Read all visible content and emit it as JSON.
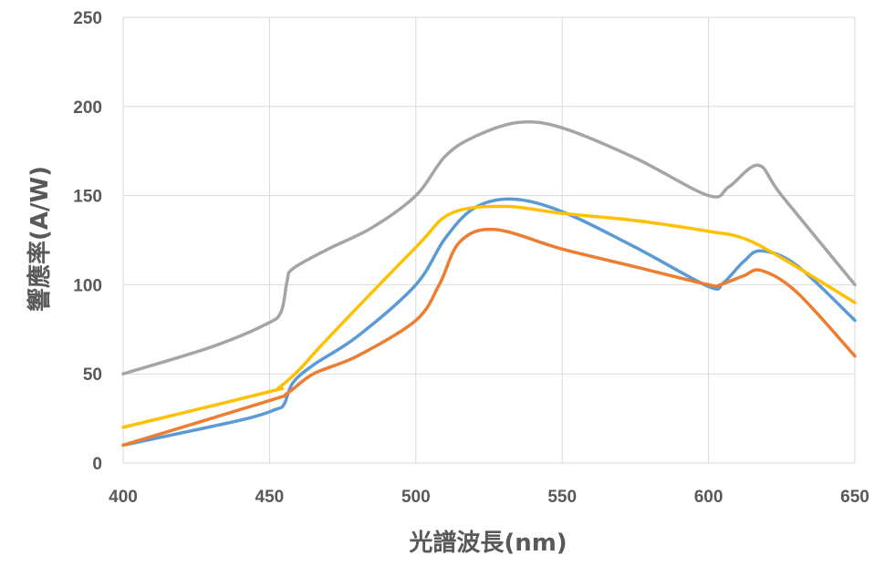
{
  "chart_data": {
    "type": "line",
    "xlabel": "光譜波長(nm)",
    "ylabel": "響應率(A/W)",
    "xlim": [
      400,
      650
    ],
    "ylim": [
      0,
      250
    ],
    "x_ticks": [
      400,
      450,
      500,
      550,
      600,
      650
    ],
    "y_ticks": [
      0,
      50,
      100,
      150,
      200,
      250
    ],
    "grid": true,
    "series": [
      {
        "color": "#5b9bd5",
        "points": [
          [
            400,
            10
          ],
          [
            440,
            24
          ],
          [
            452,
            30
          ],
          [
            455,
            33
          ],
          [
            458,
            45
          ],
          [
            465,
            55
          ],
          [
            480,
            71
          ],
          [
            500,
            100
          ],
          [
            510,
            126
          ],
          [
            520,
            143
          ],
          [
            533,
            148
          ],
          [
            550,
            141
          ],
          [
            575,
            121
          ],
          [
            600,
            99
          ],
          [
            605,
            101
          ],
          [
            612,
            113
          ],
          [
            618,
            119
          ],
          [
            630,
            111
          ],
          [
            650,
            80
          ]
        ]
      },
      {
        "color": "#ed7d31",
        "points": [
          [
            400,
            10
          ],
          [
            450,
            35
          ],
          [
            456,
            39
          ],
          [
            465,
            50
          ],
          [
            480,
            60
          ],
          [
            500,
            80
          ],
          [
            508,
            100
          ],
          [
            515,
            124
          ],
          [
            527,
            131
          ],
          [
            550,
            120
          ],
          [
            575,
            110
          ],
          [
            600,
            100
          ],
          [
            604,
            100
          ],
          [
            612,
            105
          ],
          [
            618,
            108
          ],
          [
            630,
            96
          ],
          [
            650,
            60
          ]
        ]
      },
      {
        "color": "#a5a5a5",
        "points": [
          [
            400,
            50
          ],
          [
            430,
            65
          ],
          [
            449,
            78
          ],
          [
            454,
            85
          ],
          [
            456,
            102
          ],
          [
            458,
            109
          ],
          [
            470,
            120
          ],
          [
            485,
            132
          ],
          [
            500,
            150
          ],
          [
            510,
            172
          ],
          [
            520,
            183
          ],
          [
            535,
            191
          ],
          [
            550,
            188
          ],
          [
            575,
            171
          ],
          [
            600,
            150
          ],
          [
            607,
            155
          ],
          [
            617,
            167
          ],
          [
            625,
            150
          ],
          [
            650,
            100
          ]
        ]
      },
      {
        "color": "#ffc000",
        "points": [
          [
            400,
            20
          ],
          [
            450,
            40
          ],
          [
            453,
            42
          ],
          [
            460,
            52
          ],
          [
            470,
            70
          ],
          [
            500,
            121
          ],
          [
            512,
            140
          ],
          [
            530,
            144
          ],
          [
            550,
            140
          ],
          [
            575,
            136
          ],
          [
            600,
            130
          ],
          [
            612,
            126
          ],
          [
            625,
            115
          ],
          [
            650,
            90
          ]
        ]
      }
    ]
  }
}
